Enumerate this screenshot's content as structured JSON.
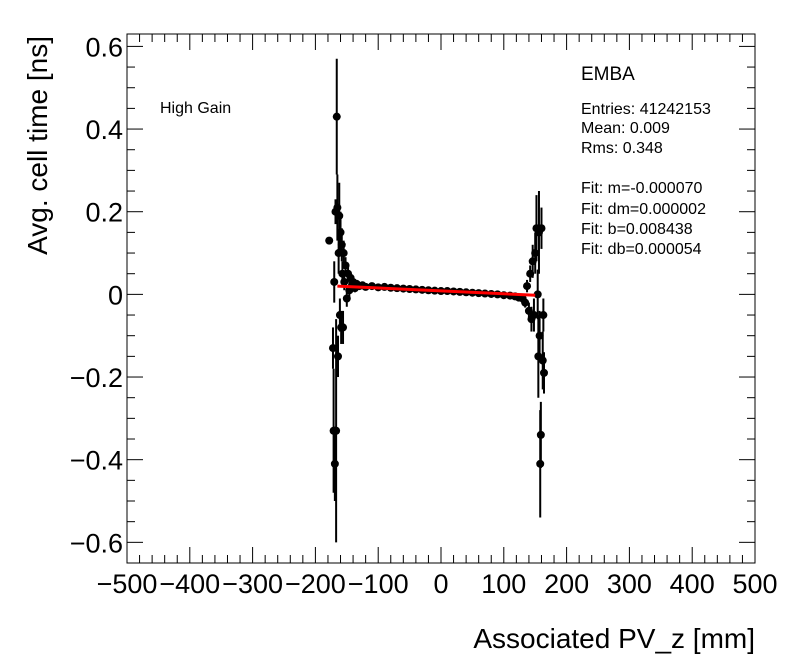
{
  "chart_data": {
    "type": "scatter",
    "title": "EMBA",
    "xlabel": "Associated PV_z [mm]",
    "ylabel": "Avg. cell time [ns]",
    "xlim": [
      -500,
      500
    ],
    "ylim": [
      -0.65,
      0.63
    ],
    "x_ticks": [
      -500,
      -400,
      -300,
      -200,
      -100,
      0,
      100,
      200,
      300,
      400,
      500
    ],
    "x_tick_labels": [
      "−500",
      "−400",
      "−300",
      "−200",
      "−100",
      "0",
      "100",
      "200",
      "300",
      "400",
      "500"
    ],
    "y_ticks": [
      -0.6,
      -0.4,
      -0.2,
      0,
      0.2,
      0.4,
      0.6
    ],
    "y_tick_labels": [
      "−0.6",
      "−0.4",
      "−0.2",
      "0",
      "0.2",
      "0.4",
      "0.6"
    ],
    "annotation": "High Gain",
    "stats": [
      "Entries: 41242153",
      "Mean: 0.009",
      "Rms: 0.348",
      "Fit: m=-0.000070",
      "Fit: dm=0.000002",
      "Fit: b=0.008438",
      "Fit: db=0.000054"
    ],
    "fit": {
      "m": -7e-05,
      "b": 0.008438,
      "x_range": [
        -165,
        150
      ],
      "color": "#ff0000"
    },
    "marker_color": "#000000",
    "points": [
      {
        "x": -178,
        "y": 0.13,
        "err": 0.0
      },
      {
        "x": -172,
        "y": -0.13,
        "err": 0.05
      },
      {
        "x": -171,
        "y": -0.33,
        "err": 0.15
      },
      {
        "x": -170,
        "y": 0.03,
        "err": 0.05
      },
      {
        "x": -169,
        "y": -0.41,
        "err": 0.09
      },
      {
        "x": -168,
        "y": 0.2,
        "err": 0.03
      },
      {
        "x": -167,
        "y": -0.33,
        "err": 0.27
      },
      {
        "x": -166,
        "y": 0.43,
        "err": 0.14
      },
      {
        "x": -165,
        "y": 0.21,
        "err": 0.08
      },
      {
        "x": -164,
        "y": -0.15,
        "err": 0.05
      },
      {
        "x": -163,
        "y": 0.1,
        "err": 0.05
      },
      {
        "x": -162,
        "y": 0.19,
        "err": 0.08
      },
      {
        "x": -161,
        "y": -0.05,
        "err": 0.04
      },
      {
        "x": -160,
        "y": 0.15,
        "err": 0.05
      },
      {
        "x": -159,
        "y": -0.08,
        "err": 0.04
      },
      {
        "x": -158,
        "y": 0.12,
        "err": 0.04
      },
      {
        "x": -157,
        "y": 0.05,
        "err": 0.03
      },
      {
        "x": -156,
        "y": -0.08,
        "err": 0.04
      },
      {
        "x": -155,
        "y": 0.1,
        "err": 0.03
      },
      {
        "x": -154,
        "y": 0.03,
        "err": 0.02
      },
      {
        "x": -152,
        "y": 0.07,
        "err": 0.02
      },
      {
        "x": -150,
        "y": -0.01,
        "err": 0.02
      },
      {
        "x": -148,
        "y": 0.05,
        "err": 0.02
      },
      {
        "x": -146,
        "y": 0.01,
        "err": 0.02
      },
      {
        "x": -144,
        "y": 0.04,
        "err": 0.015
      },
      {
        "x": -142,
        "y": 0.02,
        "err": 0.015
      },
      {
        "x": -140,
        "y": 0.03,
        "err": 0.01
      },
      {
        "x": -137,
        "y": 0.015,
        "err": 0.01
      },
      {
        "x": -134,
        "y": 0.025,
        "err": 0.01
      },
      {
        "x": -130,
        "y": 0.02,
        "err": 0.008
      },
      {
        "x": -125,
        "y": 0.022,
        "err": 0.006
      },
      {
        "x": -120,
        "y": 0.018,
        "err": 0.005
      },
      {
        "x": -110,
        "y": 0.02,
        "err": 0.004
      },
      {
        "x": -100,
        "y": 0.017,
        "err": 0.003
      },
      {
        "x": -90,
        "y": 0.018,
        "err": 0.003
      },
      {
        "x": -80,
        "y": 0.016,
        "err": 0.003
      },
      {
        "x": -70,
        "y": 0.015,
        "err": 0.003
      },
      {
        "x": -60,
        "y": 0.014,
        "err": 0.003
      },
      {
        "x": -50,
        "y": 0.013,
        "err": 0.003
      },
      {
        "x": -40,
        "y": 0.012,
        "err": 0.003
      },
      {
        "x": -30,
        "y": 0.011,
        "err": 0.003
      },
      {
        "x": -20,
        "y": 0.01,
        "err": 0.003
      },
      {
        "x": -10,
        "y": 0.009,
        "err": 0.003
      },
      {
        "x": 0,
        "y": 0.008,
        "err": 0.003
      },
      {
        "x": 10,
        "y": 0.008,
        "err": 0.003
      },
      {
        "x": 20,
        "y": 0.007,
        "err": 0.003
      },
      {
        "x": 30,
        "y": 0.006,
        "err": 0.003
      },
      {
        "x": 40,
        "y": 0.005,
        "err": 0.003
      },
      {
        "x": 50,
        "y": 0.004,
        "err": 0.003
      },
      {
        "x": 60,
        "y": 0.003,
        "err": 0.003
      },
      {
        "x": 70,
        "y": 0.002,
        "err": 0.003
      },
      {
        "x": 80,
        "y": 0.001,
        "err": 0.003
      },
      {
        "x": 90,
        "y": 0.0,
        "err": 0.004
      },
      {
        "x": 100,
        "y": -0.002,
        "err": 0.004
      },
      {
        "x": 110,
        "y": -0.003,
        "err": 0.005
      },
      {
        "x": 118,
        "y": -0.005,
        "err": 0.006
      },
      {
        "x": 124,
        "y": -0.008,
        "err": 0.008
      },
      {
        "x": 130,
        "y": -0.01,
        "err": 0.01
      },
      {
        "x": 134,
        "y": -0.02,
        "err": 0.012
      },
      {
        "x": 137,
        "y": 0.02,
        "err": 0.015
      },
      {
        "x": 140,
        "y": -0.04,
        "err": 0.02
      },
      {
        "x": 142,
        "y": 0.05,
        "err": 0.02
      },
      {
        "x": 144,
        "y": -0.06,
        "err": 0.03
      },
      {
        "x": 146,
        "y": 0.08,
        "err": 0.04
      },
      {
        "x": 148,
        "y": -0.05,
        "err": 0.04
      },
      {
        "x": 150,
        "y": 0.1,
        "err": 0.05
      },
      {
        "x": 152,
        "y": 0.16,
        "err": 0.08
      },
      {
        "x": 154,
        "y": 0.0,
        "err": 0.06
      },
      {
        "x": 155,
        "y": -0.15,
        "err": 0.1
      },
      {
        "x": 156,
        "y": 0.15,
        "err": 0.1
      },
      {
        "x": 157,
        "y": -0.1,
        "err": 0.06
      },
      {
        "x": 158,
        "y": -0.41,
        "err": 0.13
      },
      {
        "x": 159,
        "y": -0.34,
        "err": 0.08
      },
      {
        "x": 160,
        "y": 0.16,
        "err": 0.05
      },
      {
        "x": 162,
        "y": -0.16,
        "err": 0.07
      },
      {
        "x": 163,
        "y": -0.05,
        "err": 0.04
      },
      {
        "x": 164,
        "y": -0.19,
        "err": 0.05
      }
    ]
  }
}
